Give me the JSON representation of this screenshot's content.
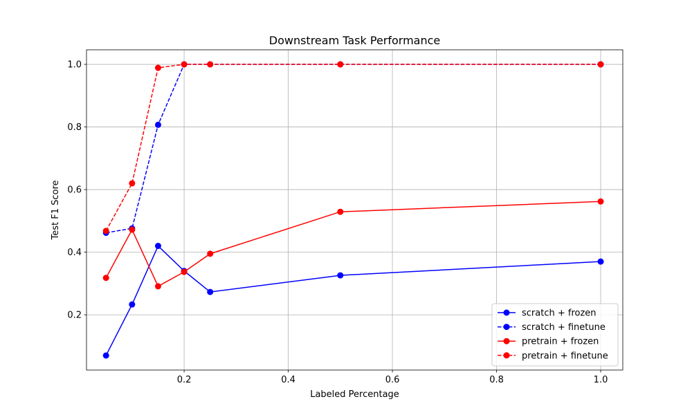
{
  "chart_data": {
    "type": "line",
    "title": "Downstream Task Performance",
    "xlabel": "Labeled Percentage",
    "ylabel": "Test F1 Score",
    "xlim": [
      0.0125,
      1.0425
    ],
    "ylim": [
      0.0235,
      1.0465
    ],
    "xticks": [
      0.2,
      0.4,
      0.6,
      0.8,
      1.0
    ],
    "xtick_labels": [
      "0.2",
      "0.4",
      "0.6",
      "0.8",
      "1.0"
    ],
    "yticks": [
      0.2,
      0.4,
      0.6,
      0.8,
      1.0
    ],
    "ytick_labels": [
      "0.2",
      "0.4",
      "0.6",
      "0.8",
      "1.0"
    ],
    "grid": true,
    "legend_position": "bottom-right",
    "x": [
      0.05,
      0.1,
      0.15,
      0.2,
      0.25,
      0.5,
      1.0
    ],
    "series": [
      {
        "name": "scratch + frozen",
        "color": "#0000ff",
        "dashed": false,
        "values": [
          0.07,
          0.233,
          0.42,
          0.34,
          0.273,
          0.326,
          0.37
        ]
      },
      {
        "name": "scratch + finetune",
        "color": "#0000ff",
        "dashed": true,
        "values": [
          0.462,
          0.476,
          0.807,
          1.0,
          1.0,
          1.0,
          1.0
        ]
      },
      {
        "name": "pretrain + frozen",
        "color": "#ff0000",
        "dashed": false,
        "values": [
          0.318,
          0.472,
          0.291,
          0.337,
          0.395,
          0.529,
          0.562
        ]
      },
      {
        "name": "pretrain + finetune",
        "color": "#ff0000",
        "dashed": true,
        "values": [
          0.468,
          0.62,
          0.989,
          1.0,
          1.0,
          1.0,
          1.0
        ]
      }
    ]
  }
}
